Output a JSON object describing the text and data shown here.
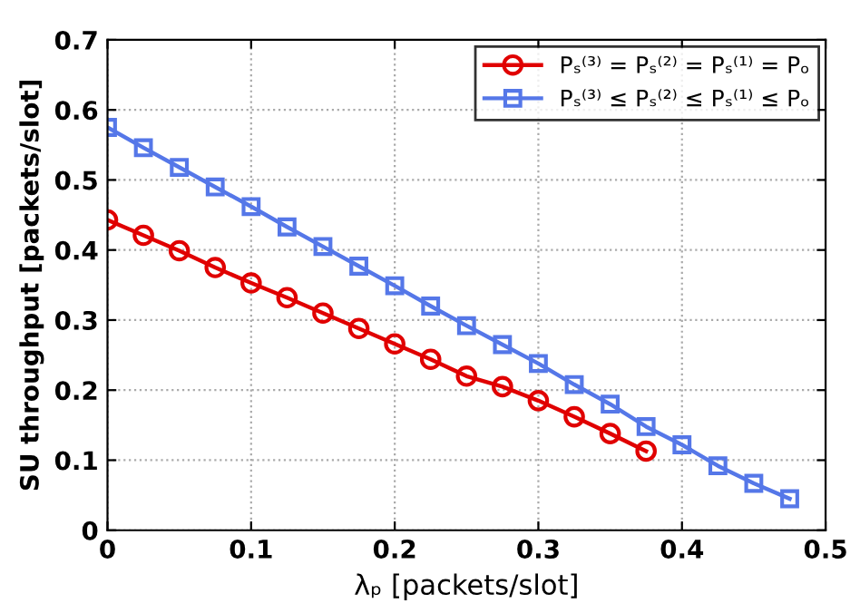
{
  "chart_data": {
    "type": "line",
    "xlabel": "λₚ [packets/slot]",
    "ylabel": "SU throughput [packets/slot]",
    "x": [
      0,
      0.025,
      0.05,
      0.075,
      0.1,
      0.125,
      0.15,
      0.175,
      0.2,
      0.225,
      0.25,
      0.275,
      0.3,
      0.325,
      0.35,
      0.375,
      0.4,
      0.425,
      0.45,
      0.475
    ],
    "series": [
      {
        "name": "Pₛ⁽³⁾ = Pₛ⁽²⁾ = Pₛ⁽¹⁾ = Pₒ",
        "color": "#e00000",
        "marker": "circle",
        "values": [
          0.443,
          0.421,
          0.399,
          0.375,
          0.353,
          0.332,
          0.31,
          0.288,
          0.266,
          0.244,
          0.22,
          0.205,
          0.185,
          0.162,
          0.138,
          0.113,
          null,
          null,
          null,
          null
        ]
      },
      {
        "name": "Pₛ⁽³⁾ ≤ Pₛ⁽²⁾ ≤ Pₛ⁽¹⁾ ≤ Pₒ",
        "color": "#5577e8",
        "marker": "square",
        "values": [
          0.575,
          0.546,
          0.518,
          0.49,
          0.462,
          0.433,
          0.405,
          0.377,
          0.349,
          0.32,
          0.292,
          0.265,
          0.238,
          0.208,
          0.18,
          0.148,
          0.122,
          0.092,
          0.067,
          0.045
        ]
      }
    ],
    "xlim": [
      0,
      0.5
    ],
    "xticks": [
      0,
      0.1,
      0.2,
      0.3,
      0.4,
      0.5
    ],
    "ylim": [
      0,
      0.7
    ],
    "yticks": [
      0,
      0.1,
      0.2,
      0.3,
      0.4,
      0.5,
      0.6,
      0.7
    ],
    "grid": true,
    "legend": "top right",
    "line_style": "solid"
  }
}
